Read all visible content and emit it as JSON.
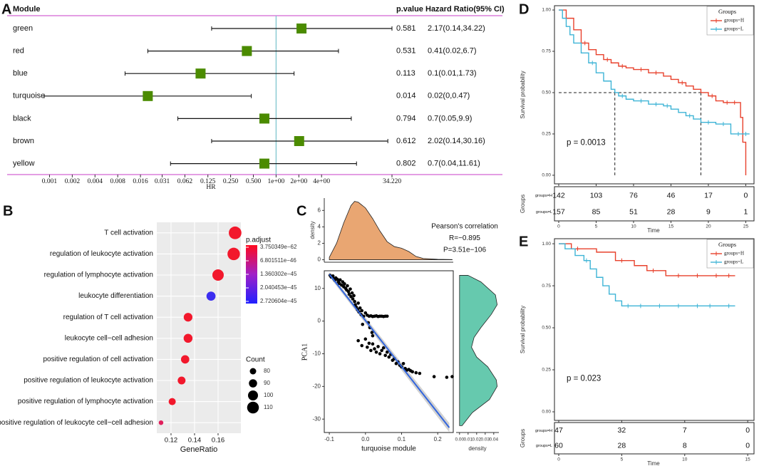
{
  "chart_data": [
    {
      "type": "forest",
      "panel": "A",
      "headers": [
        "Module",
        "p.value",
        "Hazard Ratio(95% CI)"
      ],
      "categories": [
        "green",
        "red",
        "blue",
        "turquoise",
        "black",
        "brown",
        "yellow"
      ],
      "p_values": [
        0.581,
        0.531,
        0.113,
        0.014,
        0.794,
        0.612,
        0.802
      ],
      "hr": [
        2.17,
        0.41,
        0.1,
        0.02,
        0.7,
        2.02,
        0.7
      ],
      "ci_low": [
        0.14,
        0.02,
        0.01,
        0,
        0.05,
        0.14,
        0.04
      ],
      "ci_high": [
        34.22,
        6.7,
        1.73,
        0.47,
        9.9,
        30.16,
        11.61
      ],
      "value_labels": [
        "2.17(0.14,34.22)",
        "0.41(0.02,6.7)",
        "0.1(0.01,1.73)",
        "0.02(0,0.47)",
        "0.7(0.05,9.9)",
        "2.02(0.14,30.16)",
        "0.7(0.04,11.61)"
      ],
      "xlabel": "HR",
      "log_x": true,
      "xlim": [
        0.00085,
        34.22
      ],
      "xticks": [
        0.001,
        0.002,
        0.004,
        0.008,
        0.016,
        0.031,
        0.062,
        0.125,
        {
          "value": 0.25,
          "label": "0.250"
        },
        {
          "value": 0.5,
          "label": "0.500"
        },
        {
          "value": 1,
          "label": "1e+00"
        },
        {
          "value": 2,
          "label": "2e+00"
        },
        {
          "value": 4,
          "label": "4e+00"
        },
        {
          "value": 34.22,
          "label": "34.220"
        }
      ],
      "ref_line": 1,
      "color": "#4b8b00",
      "ref_color": "#7fc6cf",
      "rule_color": "#c83cc8"
    },
    {
      "type": "dot",
      "panel": "B",
      "categories": [
        "T cell activation",
        "regulation of leukocyte activation",
        "regulation of lymphocyte activation",
        "leukocyte differentiation",
        "regulation of T cell activation",
        "leukocyte cell−cell adhesion",
        "positive regulation of cell activation",
        "positive regulation of leukocyte activation",
        "positive regulation of lymphocyte activation",
        "positive regulation of leukocyte cell−cell adhesion"
      ],
      "values": [
        0.1745,
        0.1733,
        0.16,
        0.154,
        0.1345,
        0.1345,
        0.132,
        0.129,
        0.121,
        0.1115
      ],
      "counts": [
        115,
        114,
        108,
        95,
        93,
        94,
        91,
        88,
        84,
        70
      ],
      "colors": [
        "#f2182c",
        "#f2182c",
        "#f2182c",
        "#3c2ef0",
        "#f2182c",
        "#f2182c",
        "#f2182c",
        "#f2182c",
        "#f2182c",
        "#e0205c"
      ],
      "xlabel": "GeneRatio",
      "xlim": [
        0.1079,
        0.1794
      ],
      "xticks": [
        0.12,
        0.14,
        0.16
      ],
      "color_legend": {
        "title": "p.adjust",
        "colors": [
          "#ff0a1e",
          "#a020c8",
          "#2020ff"
        ],
        "ticks": [
          {
            "value": 3.750349e-62,
            "label": "3.750349e−62"
          },
          {
            "value": 6.801511e-46,
            "label": "6.801511e−46"
          },
          {
            "value": 1.360302e-45,
            "label": "1.360302e−45"
          },
          {
            "value": 2.040453e-45,
            "label": "2.040453e−45"
          },
          {
            "value": 2.720604e-45,
            "label": "2.720604e−45"
          }
        ]
      },
      "size_legend": {
        "title": "Count",
        "values": [
          80,
          90,
          100,
          110
        ]
      }
    },
    {
      "type": "scatter",
      "panel": "C",
      "x": [
        -0.098,
        -0.095,
        -0.09,
        -0.088,
        -0.085,
        -0.082,
        -0.078,
        -0.075,
        -0.072,
        -0.07,
        -0.066,
        -0.063,
        -0.06,
        -0.058,
        -0.055,
        -0.052,
        -0.05,
        -0.047,
        -0.045,
        -0.042,
        -0.04,
        -0.037,
        -0.035,
        -0.032,
        -0.03,
        -0.028,
        -0.025,
        -0.022,
        -0.02,
        -0.018,
        -0.015,
        -0.012,
        -0.01,
        -0.005,
        0,
        0.005,
        0.01,
        0.015,
        0.02,
        0.025,
        0.03,
        0.035,
        0.04,
        0.045,
        0.05,
        0.055,
        0.06,
        0.008,
        0.012,
        0.018,
        -0.008,
        0.02,
        -0.02,
        -0.01,
        0,
        0.005,
        0.01,
        0.015,
        0.02,
        0.025,
        0.03,
        0.035,
        0.04,
        0.045,
        0.05,
        0.055,
        0.06,
        0.065,
        0.07,
        0.075,
        0.08,
        0.085,
        0.09,
        0.095,
        0.1,
        0.105,
        0.11,
        0.115,
        0.12,
        0.125,
        0.13,
        0.14,
        0.15,
        0.19,
        0.225,
        0.24
      ],
      "y": [
        14,
        13.5,
        13.8,
        13,
        12.5,
        13.2,
        12.8,
        12,
        11.5,
        12.6,
        11,
        12,
        10.5,
        11.4,
        10,
        9.5,
        10.8,
        9,
        8.2,
        9.8,
        7.5,
        8.6,
        6.8,
        7.8,
        6,
        5,
        4.2,
        3.5,
        5.5,
        2.8,
        4,
        2,
        3.2,
        1.5,
        2.5,
        1.8,
        1.5,
        1.6,
        1.4,
        1.5,
        1.6,
        1.4,
        1.5,
        1.5,
        1.4,
        1.5,
        1.5,
        -0.5,
        -2,
        -3.5,
        -1,
        -4.5,
        -6,
        -7.5,
        -5.5,
        -8,
        -6.8,
        -9,
        -7,
        -8.5,
        -9.5,
        -7.8,
        -10,
        -9,
        -8.2,
        -10.5,
        -9.5,
        -11,
        -10.2,
        -12,
        -11.5,
        -13,
        -12.5,
        -13.5,
        -14,
        -13,
        -14.5,
        -15,
        -14.8,
        -15.2,
        -15.5,
        -15.8,
        -16,
        -17,
        -17.2,
        -17
      ],
      "xlim": [
        -0.114,
        0.243
      ],
      "xticks": [
        -0.1,
        {
          "value": 0,
          "label": "0.0"
        },
        0.1,
        0.2
      ],
      "ylim": [
        -34.1,
        15.4
      ],
      "yticks": [
        10,
        0,
        -10,
        -20,
        -30
      ],
      "xlabel": "turquoise module",
      "ylabel": "PCA1",
      "fit": {
        "x": [
          -0.1,
          0.232
        ],
        "y": [
          14.3,
          -32.6
        ],
        "lower": [
          13.6,
          -34
        ],
        "upper": [
          15,
          -31.2
        ],
        "color": "#3366dd"
      },
      "annotation": [
        "Pearson's correlation",
        "R=−0.895",
        "P=3.51e−106"
      ],
      "top_density": {
        "x": [
          -0.1,
          -0.08,
          -0.06,
          -0.04,
          -0.03,
          -0.02,
          0,
          0.02,
          0.04,
          0.06,
          0.08,
          0.1,
          0.12,
          0.14,
          0.16,
          0.2,
          0.24
        ],
        "y": [
          0.3,
          2,
          4.5,
          6.6,
          7.1,
          7,
          6.3,
          5,
          3.5,
          2.2,
          1.6,
          1.4,
          1,
          0.4,
          0.15,
          0.05,
          0.02
        ],
        "ylabel": "density",
        "ylim": [
          -0.3,
          7.5
        ],
        "yticks": [
          0,
          2,
          4,
          6
        ],
        "color": "#e9a672"
      },
      "right_density": {
        "y": [
          14,
          12,
          8,
          5,
          2,
          -2,
          -5,
          -8,
          -11,
          -14,
          -18,
          -20,
          -24,
          -28,
          -32
        ],
        "x": [
          0.01,
          0.025,
          0.042,
          0.044,
          0.037,
          0.025,
          0.017,
          0.014,
          0.02,
          0.033,
          0.043,
          0.044,
          0.035,
          0.015,
          0.003
        ],
        "xlabel": "density",
        "xlim": [
          -0.004,
          0.046
        ],
        "xticks": [
          {
            "value": 0,
            "label": "0.00"
          },
          0.01,
          0.02,
          0.03,
          0.04
        ],
        "color": "#66c9ae"
      }
    },
    {
      "type": "km",
      "panel": "D",
      "legend_title": "Groups",
      "series": [
        {
          "name": "groups=H",
          "color": "#e8412c",
          "x": [
            0,
            1,
            2,
            3,
            4,
            5,
            6,
            7,
            8,
            9,
            10,
            12,
            14,
            15,
            16,
            17,
            18,
            19,
            20,
            21,
            22,
            24.3,
            24.6,
            25
          ],
          "values": [
            1,
            0.95,
            0.88,
            0.8,
            0.76,
            0.73,
            0.7,
            0.68,
            0.66,
            0.65,
            0.64,
            0.62,
            0.6,
            0.58,
            0.56,
            0.54,
            0.52,
            0.5,
            0.48,
            0.45,
            0.44,
            0.35,
            0.2,
            0
          ],
          "censor": [
            3.5,
            6.5,
            8.5,
            11,
            13,
            16.5,
            20.5,
            22.5,
            23.5
          ]
        },
        {
          "name": "groups=L",
          "color": "#3eb4d6",
          "x": [
            0,
            0.5,
            1,
            1.5,
            2,
            3,
            4,
            5,
            6,
            7,
            7.5,
            8,
            9,
            10,
            12,
            14,
            15,
            16,
            17,
            18,
            19,
            21,
            23,
            25.5
          ],
          "values": [
            1,
            0.95,
            0.9,
            0.85,
            0.8,
            0.74,
            0.68,
            0.62,
            0.57,
            0.52,
            0.5,
            0.48,
            0.46,
            0.45,
            0.43,
            0.42,
            0.4,
            0.38,
            0.36,
            0.34,
            0.32,
            0.31,
            0.25,
            0.25
          ],
          "censor": [
            4.5,
            8.5,
            11,
            13,
            14.5,
            17.5,
            20,
            22,
            24,
            25
          ]
        }
      ],
      "xlim": [
        -0.57,
        26.1
      ],
      "xticks": [
        0,
        5,
        10,
        15,
        20,
        25
      ],
      "ylim": [
        -0.052,
        1.026
      ],
      "yticks": [
        {
          "value": 0,
          "label": "0.00"
        },
        0.25,
        {
          "value": 0.5,
          "label": "0.50"
        },
        0.75,
        {
          "value": 1,
          "label": "1.00"
        }
      ],
      "xlabel": "Time",
      "ylabel": "Survival probability",
      "pvalue_text": "p = 0.0013",
      "median": {
        "survival": 0.5,
        "times": [
          7.5,
          19
        ]
      },
      "risk_table": {
        "title": "Groups",
        "rows": [
          [
            142,
            103,
            76,
            46,
            17,
            0
          ],
          [
            157,
            85,
            51,
            28,
            9,
            1
          ]
        ]
      }
    },
    {
      "type": "km",
      "panel": "E",
      "legend_title": "Groups",
      "series": [
        {
          "name": "groups=H",
          "color": "#e8412c",
          "x": [
            0,
            1,
            3,
            4.5,
            6,
            7,
            8.5,
            14
          ],
          "values": [
            1,
            0.97,
            0.95,
            0.9,
            0.87,
            0.84,
            0.81,
            0.81
          ],
          "censor": [
            1.5,
            5,
            7.5,
            9.5,
            11,
            12.5,
            13.5
          ]
        },
        {
          "name": "groups=L",
          "color": "#3eb4d6",
          "x": [
            0,
            0.5,
            1.3,
            2,
            2.5,
            3,
            3.5,
            4,
            4.5,
            5,
            14
          ],
          "values": [
            1,
            0.97,
            0.93,
            0.9,
            0.85,
            0.8,
            0.75,
            0.7,
            0.66,
            0.63,
            0.63
          ],
          "censor": [
            2.2,
            5.5,
            6.5,
            8,
            9.5,
            11,
            12,
            13.5
          ]
        }
      ],
      "xlim": [
        -0.34,
        15.5
      ],
      "xticks": [
        0,
        5,
        10,
        15
      ],
      "ylim": [
        -0.051,
        1.03
      ],
      "yticks": [
        {
          "value": 0,
          "label": "0.00"
        },
        0.25,
        {
          "value": 0.5,
          "label": "0.50"
        },
        0.75,
        {
          "value": 1,
          "label": "1.00"
        }
      ],
      "xlabel": "Time",
      "ylabel": "Survival probability",
      "pvalue_text": "p = 0.023",
      "risk_table": {
        "title": "Groups",
        "rows": [
          [
            47,
            32,
            7,
            0
          ],
          [
            60,
            28,
            8,
            0
          ]
        ]
      }
    }
  ]
}
